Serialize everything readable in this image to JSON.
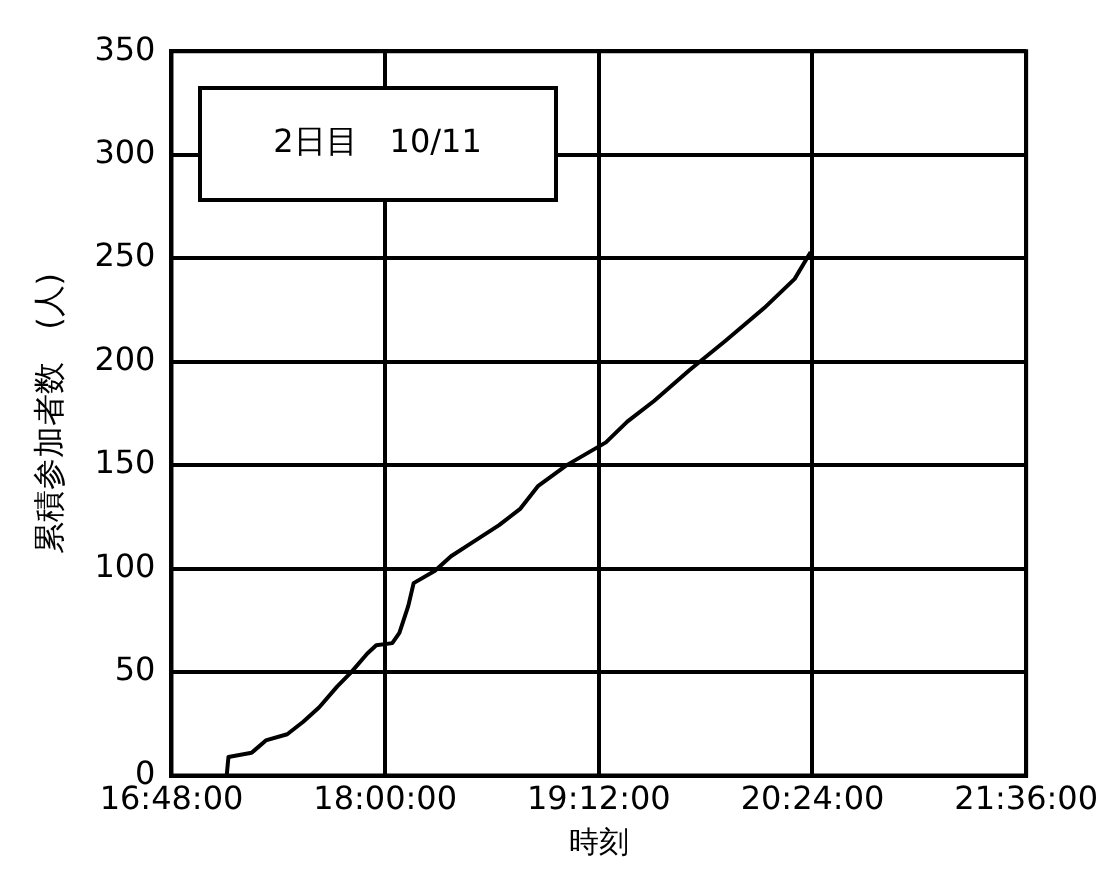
{
  "chart_data": {
    "type": "line",
    "xlabel": "時刻",
    "ylabel": "累積参加者数　(人)",
    "annotations": [
      "2日目　10/11"
    ],
    "x": [
      17.11,
      17.12,
      17.25,
      17.33,
      17.45,
      17.54,
      17.63,
      17.73,
      17.81,
      17.9,
      17.95,
      18.04,
      18.08,
      18.13,
      18.16,
      18.28,
      18.37,
      18.46,
      18.64,
      18.76,
      18.86,
      19.02,
      19.24,
      19.36,
      19.51,
      19.71,
      19.91,
      20.13,
      20.3,
      20.39
    ],
    "series": [
      {
        "color": "#000000",
        "values": [
          0,
          9,
          11,
          17,
          20,
          26,
          33,
          43,
          50,
          59,
          63,
          64,
          69,
          82,
          93,
          99,
          106,
          111,
          121,
          129,
          140,
          150,
          161,
          171,
          181,
          196,
          210,
          226,
          240,
          253
        ]
      }
    ],
    "xlim": [
      16.8,
      21.6
    ],
    "xticks": [
      {
        "value": 16.8,
        "label": "16:48:00"
      },
      {
        "value": 18,
        "label": "18:00:00"
      },
      {
        "value": 19.2,
        "label": "19:12:00"
      },
      {
        "value": 20.4,
        "label": "20:24:00"
      },
      {
        "value": 21.6,
        "label": "21:36:00"
      }
    ],
    "ylim": [
      0,
      350
    ],
    "yticks": [
      0,
      50,
      100,
      150,
      200,
      250,
      300,
      350
    ],
    "grid": true,
    "legend": false,
    "marker": "none",
    "line_style": "solid"
  }
}
